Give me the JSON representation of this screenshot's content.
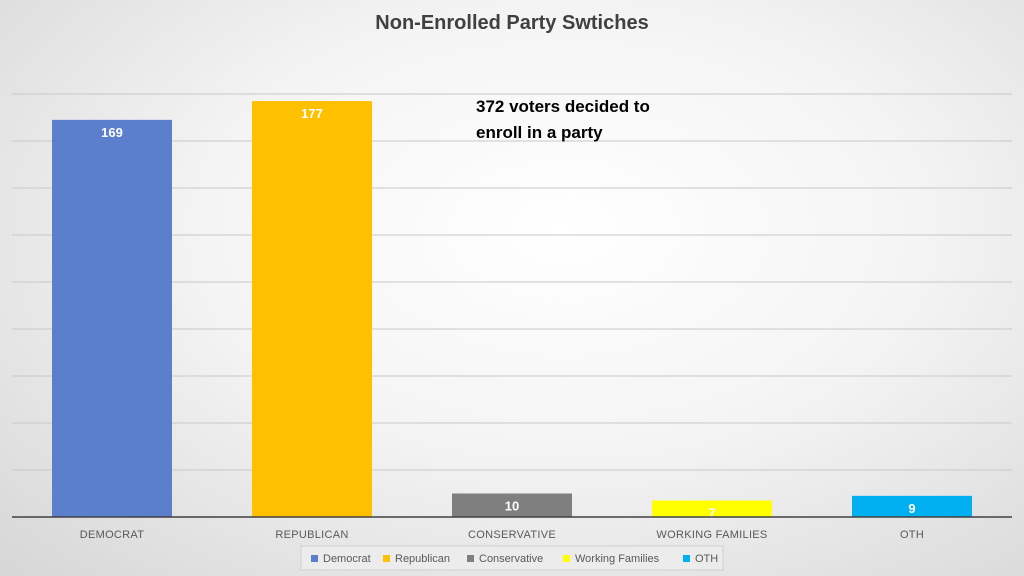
{
  "chart_data": {
    "type": "bar",
    "title": "Non-Enrolled Party Swtiches",
    "categories": [
      "DEMOCRAT",
      "REPUBLICAN",
      "CONSERVATIVE",
      "WORKING FAMILIES",
      "OTH"
    ],
    "values": [
      169,
      177,
      10,
      7,
      9
    ],
    "colors": [
      "#5b7fcc",
      "#ffc000",
      "#7f7f7f",
      "#ffff00",
      "#00b0f0"
    ],
    "legend": [
      "Democrat",
      "Republican",
      "Conservative",
      "Working Families",
      "OTH"
    ],
    "legend_position": "bottom",
    "annotation": [
      "372 voters decided to",
      "enroll in a party"
    ],
    "xlabel": "",
    "ylabel": "",
    "ylim": [
      0,
      180
    ],
    "y_ticks_shown": false,
    "grid": true,
    "grid_step": 20
  }
}
